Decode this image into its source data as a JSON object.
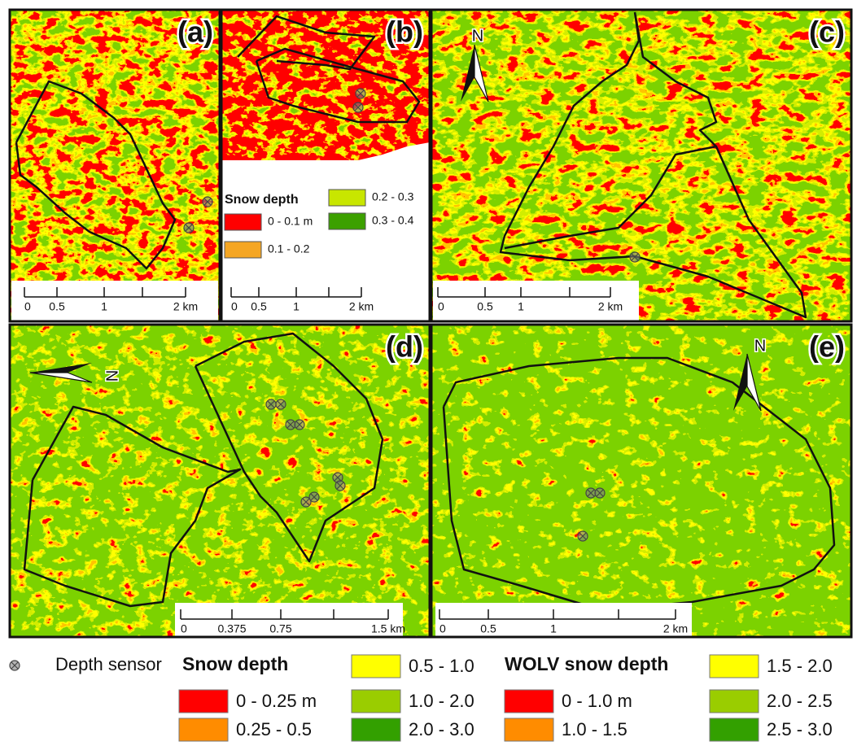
{
  "panels": [
    {
      "label": "(a)",
      "scale_labels": [
        "0",
        "0.5",
        "1",
        "2 km"
      ]
    },
    {
      "label": "(b)",
      "scale_labels": [
        "0",
        "0.5",
        "1",
        "2 km"
      ]
    },
    {
      "label": "(c)",
      "scale_labels": [
        "0",
        "0.5",
        "1",
        "2 km"
      ],
      "north": "N"
    },
    {
      "label": "(d)",
      "scale_labels": [
        "0",
        "0.375",
        "0.75",
        "1.5 km"
      ],
      "north": "N"
    },
    {
      "label": "(e)",
      "scale_labels": [
        "0",
        "0.5",
        "1",
        "2 km"
      ],
      "north": "N"
    }
  ],
  "inset_legend": {
    "title": "Snow depth",
    "items": [
      "0 - 0.1 m",
      "0.1 - 0.2",
      "0.2 - 0.3",
      "0.3 - 0.4"
    ]
  },
  "legend": {
    "sensor": "Depth sensor",
    "snow_depth": {
      "title": "Snow depth",
      "items": [
        "0 - 0.25 m",
        "0.25 - 0.5",
        "0.5 - 1.0",
        "1.0 - 2.0",
        "2.0 - 3.0"
      ]
    },
    "wolv": {
      "title": "WOLV snow depth",
      "items": [
        "0 - 1.0 m",
        "1.0 - 1.5",
        "1.5 - 2.0",
        "2.0 - 2.5",
        "2.5 - 3.0"
      ]
    }
  }
}
